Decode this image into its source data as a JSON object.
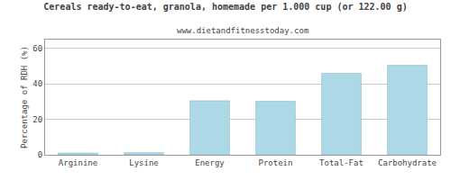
{
  "chart_data": {
    "type": "bar",
    "title": "Cereals ready-to-eat, granola, homemade per 1.000 cup (or 122.00 g)",
    "subtitle": "www.dietandfitnesstoday.com",
    "ylabel": "Percentage of RDH (%)",
    "categories": [
      "Arginine",
      "Lysine",
      "Energy",
      "Protein",
      "Total-Fat",
      "Carbohydrate"
    ],
    "values": [
      1.0,
      1.2,
      30.5,
      30.2,
      46.0,
      50.5
    ],
    "color": "#add8e6",
    "ylim": [
      0,
      65
    ],
    "yticks": [
      0,
      20,
      40,
      60
    ],
    "grid": true
  }
}
